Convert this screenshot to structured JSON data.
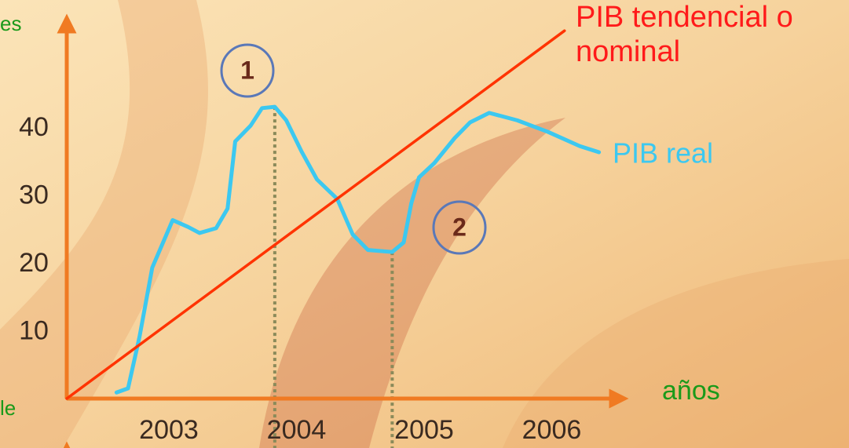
{
  "chart_data": {
    "type": "line",
    "y_label": "es",
    "y_label_bottom": "le",
    "x_label": "años",
    "xlim": [
      2002.2,
      2006.6
    ],
    "ylim": [
      0,
      57
    ],
    "xticks": [
      2003,
      2004,
      2005,
      2006
    ],
    "yticks": [
      10,
      20,
      30,
      40
    ],
    "grid": false,
    "series": [
      {
        "name": "PIB real",
        "color": "#3cc8f0",
        "x": [
          2002.59,
          2002.68,
          2002.77,
          2002.87,
          2003.03,
          2003.15,
          2003.24,
          2003.37,
          2003.46,
          2003.52,
          2003.64,
          2003.73,
          2003.83,
          2003.92,
          2004.04,
          2004.16,
          2004.32,
          2004.44,
          2004.56,
          2004.75,
          2004.84,
          2004.9,
          2004.96,
          2005.08,
          2005.24,
          2005.36,
          2005.51,
          2005.73,
          2005.97,
          2006.22,
          2006.37
        ],
        "values": [
          0.9,
          1.5,
          9.1,
          19.3,
          26.3,
          25.3,
          24.4,
          25.1,
          28.0,
          37.9,
          40.2,
          42.8,
          43.0,
          41.0,
          36.4,
          32.3,
          29.4,
          24.2,
          21.9,
          21.6,
          23.0,
          28.8,
          32.6,
          34.7,
          38.4,
          40.7,
          42.1,
          41.0,
          39.3,
          37.2,
          36.3
        ]
      },
      {
        "name": "PIB tendencial o nominal",
        "color": "#ff3300",
        "x": [
          2002.2,
          2006.1
        ],
        "values": [
          0,
          54.2
        ]
      }
    ],
    "annotations": [
      "1",
      "2"
    ]
  }
}
